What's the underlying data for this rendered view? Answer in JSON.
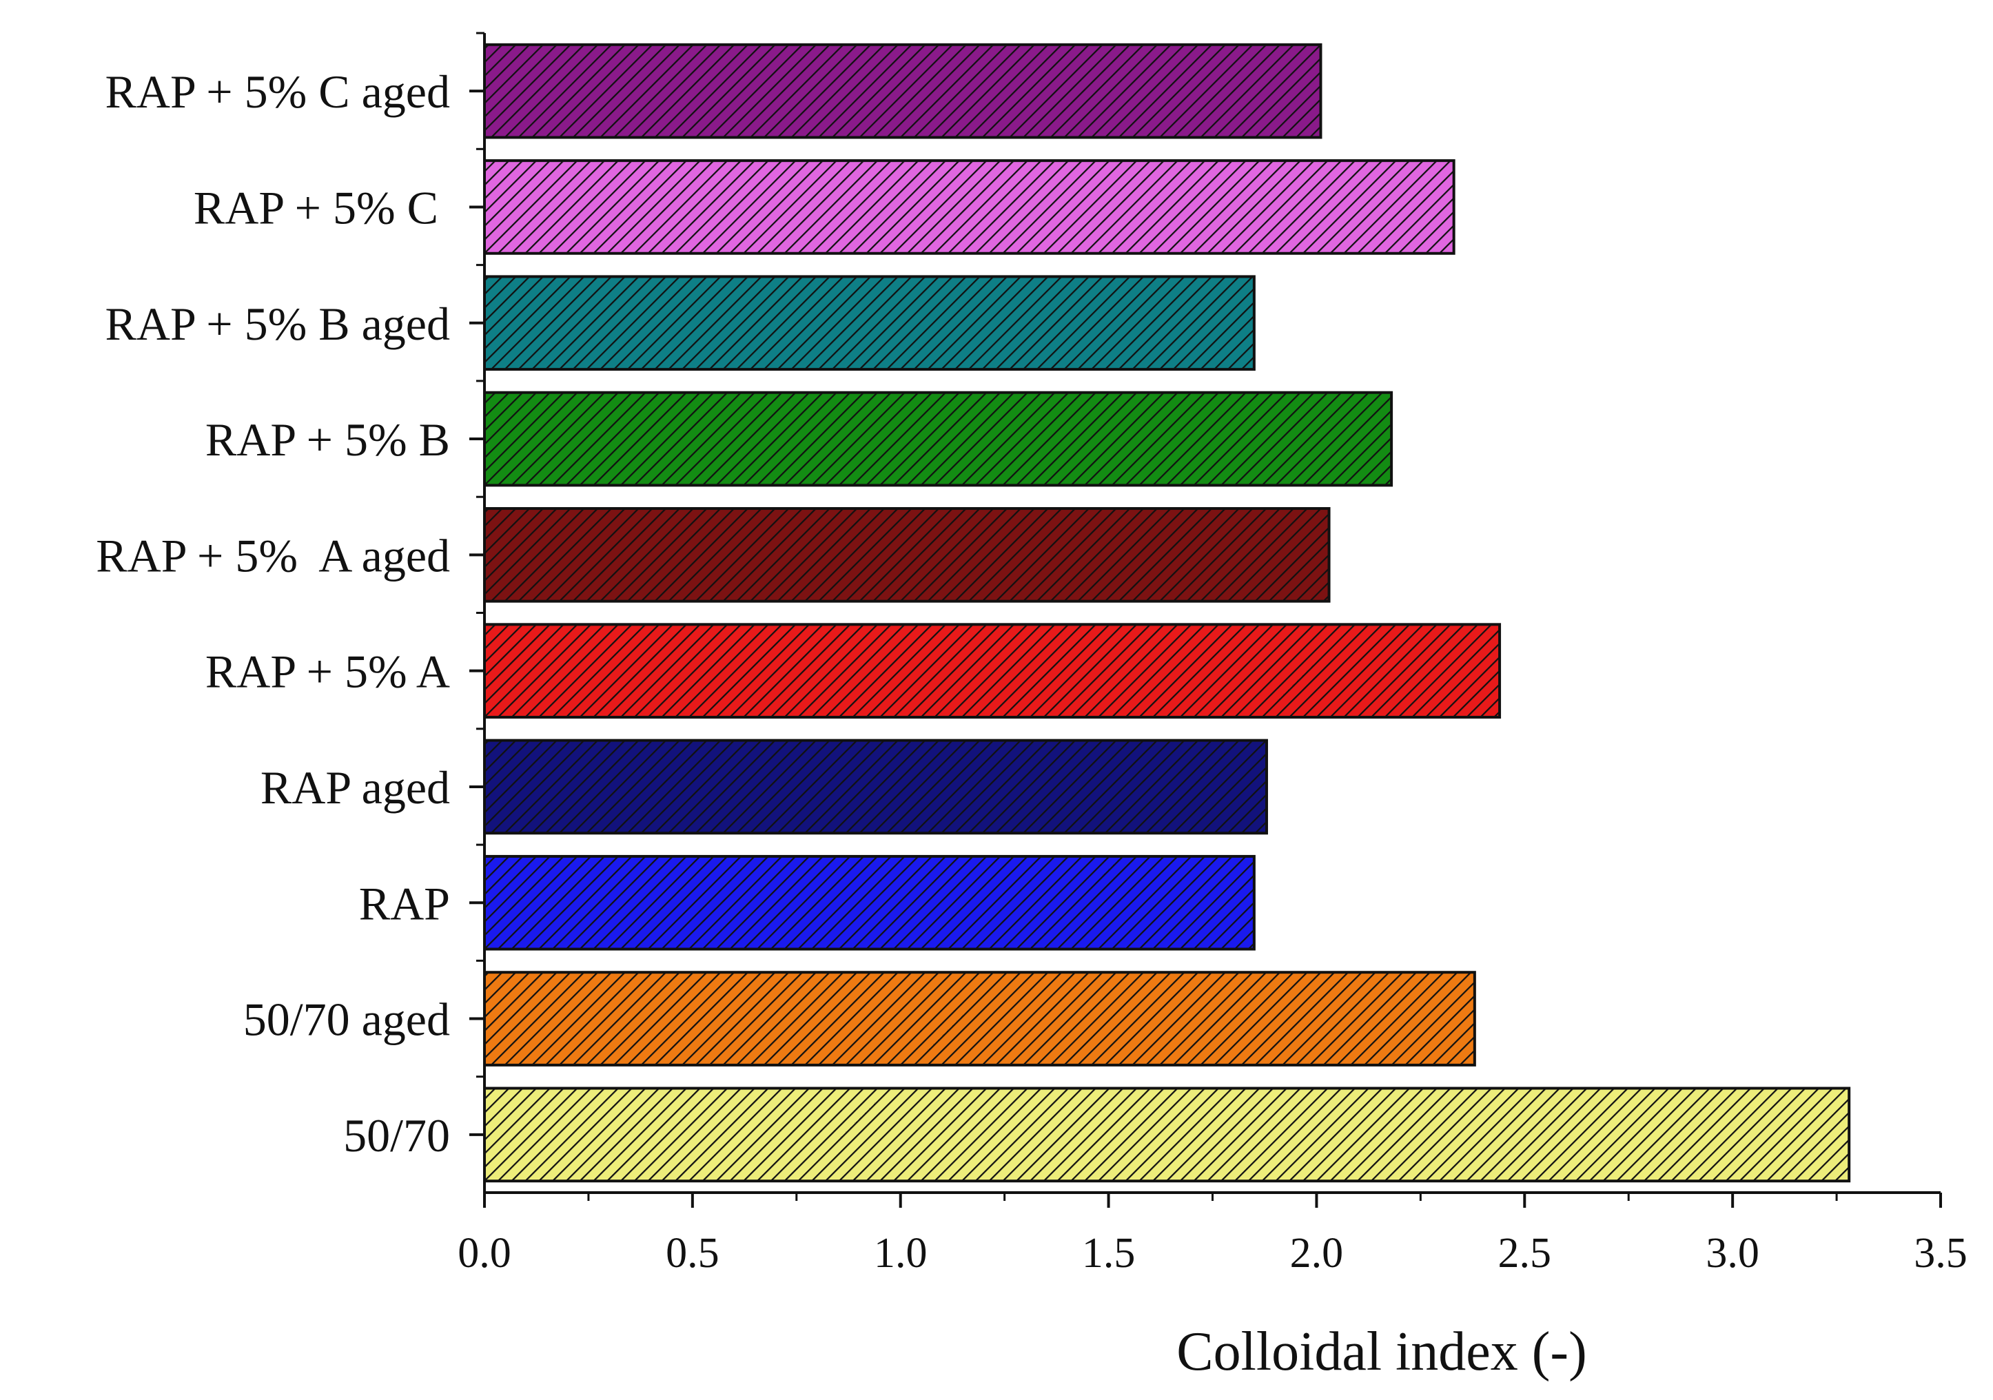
{
  "chart_data": {
    "type": "bar",
    "orientation": "horizontal",
    "title": "",
    "xlabel": "Colloidal index (-)",
    "ylabel": "",
    "xlim": [
      0.0,
      3.5
    ],
    "x_ticks": [
      "0.0",
      "0.5",
      "1.0",
      "1.5",
      "2.0",
      "2.5",
      "3.0",
      "3.5"
    ],
    "grid": false,
    "legend": null,
    "bars": [
      {
        "label": "RAP + 5% C aged",
        "value": 2.01,
        "color": "#8a1a8a"
      },
      {
        "label": "RAP + 5% C ",
        "value": 2.33,
        "color": "#e066e0"
      },
      {
        "label": "RAP + 5% B aged",
        "value": 1.85,
        "color": "#0e7f86"
      },
      {
        "label": "RAP + 5% B",
        "value": 2.18,
        "color": "#138c13"
      },
      {
        "label": "RAP + 5%  A aged",
        "value": 2.03,
        "color": "#7c1212"
      },
      {
        "label": "RAP + 5% A",
        "value": 2.44,
        "color": "#e81a1a"
      },
      {
        "label": "RAP aged",
        "value": 1.88,
        "color": "#12127c"
      },
      {
        "label": "RAP",
        "value": 1.85,
        "color": "#1a1aee"
      },
      {
        "label": "50/70 aged",
        "value": 2.38,
        "color": "#ee7a12"
      },
      {
        "label": "50/70",
        "value": 3.28,
        "color": "#eded7a"
      }
    ]
  }
}
